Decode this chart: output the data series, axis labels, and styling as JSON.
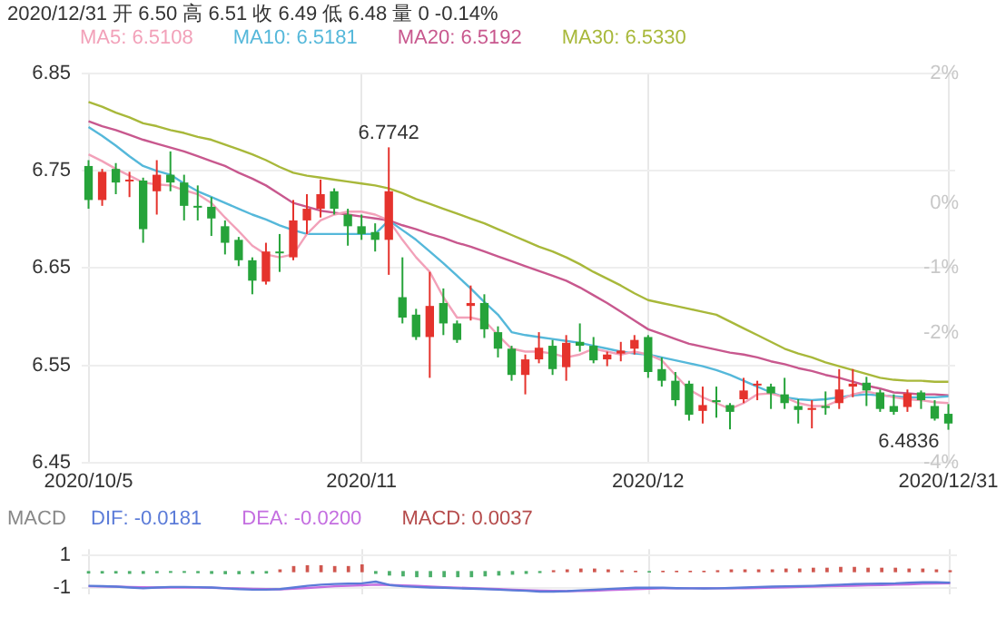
{
  "chart_data": [
    {
      "type": "candlestick",
      "title": "2020/12/31 开 6.50 高 6.51 收 6.49 低 6.48 量 0 -0.14%",
      "categories": [
        "2020/10/5",
        null,
        null,
        null,
        null,
        null,
        null,
        null,
        null,
        null,
        null,
        null,
        null,
        null,
        null,
        null,
        null,
        null,
        null,
        null,
        "2020/11",
        null,
        null,
        null,
        null,
        null,
        null,
        null,
        null,
        null,
        null,
        null,
        null,
        null,
        null,
        null,
        null,
        null,
        null,
        null,
        null,
        "2020/12",
        null,
        null,
        null,
        null,
        null,
        null,
        null,
        null,
        null,
        null,
        null,
        null,
        null,
        null,
        null,
        null,
        null,
        null,
        null,
        null,
        null,
        "2020/12/31"
      ],
      "ohlc": [
        [
          6.755,
          6.761,
          6.711,
          6.72
        ],
        [
          6.72,
          6.752,
          6.714,
          6.749
        ],
        [
          6.752,
          6.758,
          6.726,
          6.738
        ],
        [
          6.74,
          6.749,
          6.723,
          6.741
        ],
        [
          6.74,
          6.743,
          6.676,
          6.69
        ],
        [
          6.729,
          6.761,
          6.705,
          6.746
        ],
        [
          6.746,
          6.77,
          6.729,
          6.738
        ],
        [
          6.738,
          6.746,
          6.699,
          6.714
        ],
        [
          6.714,
          6.735,
          6.699,
          6.713
        ],
        [
          6.713,
          6.723,
          6.683,
          6.701
        ],
        [
          6.693,
          6.699,
          6.664,
          6.676
        ],
        [
          6.679,
          6.682,
          6.652,
          6.658
        ],
        [
          6.658,
          6.661,
          6.623,
          6.637
        ],
        [
          6.636,
          6.676,
          6.633,
          6.667
        ],
        [
          6.667,
          6.685,
          6.646,
          6.666
        ],
        [
          6.661,
          6.72,
          6.658,
          6.699
        ],
        [
          6.699,
          6.726,
          6.685,
          6.711
        ],
        [
          6.711,
          6.741,
          6.702,
          6.726
        ],
        [
          6.729,
          6.732,
          6.705,
          6.711
        ],
        [
          6.705,
          6.711,
          6.673,
          6.693
        ],
        [
          6.693,
          6.705,
          6.679,
          6.685
        ],
        [
          6.687,
          6.696,
          6.667,
          6.679
        ],
        [
          6.679,
          6.7742,
          6.643,
          6.729
        ],
        [
          6.62,
          6.661,
          6.593,
          6.599
        ],
        [
          6.602,
          6.608,
          6.576,
          6.579
        ],
        [
          6.579,
          6.646,
          6.537,
          6.611
        ],
        [
          6.614,
          6.629,
          6.581,
          6.593
        ],
        [
          6.593,
          6.596,
          6.573,
          6.576
        ],
        [
          6.611,
          6.632,
          6.596,
          6.614
        ],
        [
          6.614,
          6.623,
          6.578,
          6.587
        ],
        [
          6.584,
          6.59,
          6.558,
          6.567
        ],
        [
          6.567,
          6.57,
          6.534,
          6.54
        ],
        [
          6.54,
          6.561,
          6.52,
          6.556
        ],
        [
          6.556,
          6.584,
          6.552,
          6.568
        ],
        [
          6.57,
          6.576,
          6.54,
          6.546
        ],
        [
          6.548,
          6.581,
          6.534,
          6.573
        ],
        [
          6.574,
          6.593,
          6.564,
          6.57
        ],
        [
          6.57,
          6.579,
          6.552,
          6.555
        ],
        [
          6.556,
          6.564,
          6.549,
          6.561
        ],
        [
          6.562,
          6.574,
          6.554,
          6.565
        ],
        [
          6.567,
          6.581,
          6.561,
          6.576
        ],
        [
          6.579,
          6.581,
          6.537,
          6.543
        ],
        [
          6.546,
          6.558,
          6.528,
          6.534
        ],
        [
          6.534,
          6.543,
          6.508,
          6.514
        ],
        [
          6.531,
          6.534,
          6.493,
          6.499
        ],
        [
          6.503,
          6.528,
          6.49,
          6.509
        ],
        [
          6.514,
          6.528,
          6.496,
          6.512
        ],
        [
          6.509,
          6.511,
          6.484,
          6.502
        ],
        [
          6.515,
          6.537,
          6.511,
          6.524
        ],
        [
          6.53,
          6.534,
          6.514,
          6.531
        ],
        [
          6.528,
          6.531,
          6.505,
          6.521
        ],
        [
          6.52,
          6.537,
          6.505,
          6.511
        ],
        [
          6.508,
          6.515,
          6.49,
          6.504
        ],
        [
          6.504,
          6.514,
          6.485,
          6.506
        ],
        [
          6.508,
          6.523,
          6.499,
          6.506
        ],
        [
          6.511,
          6.546,
          6.505,
          6.525
        ],
        [
          6.528,
          6.546,
          6.517,
          6.531
        ],
        [
          6.532,
          6.538,
          6.508,
          6.524
        ],
        [
          6.522,
          6.525,
          6.502,
          6.505
        ],
        [
          6.508,
          6.52,
          6.499,
          6.502
        ],
        [
          6.507,
          6.525,
          6.502,
          6.521
        ],
        [
          6.522,
          6.524,
          6.505,
          6.514
        ],
        [
          6.508,
          6.514,
          6.493,
          6.495
        ],
        [
          6.5,
          6.51,
          6.4836,
          6.49
        ]
      ],
      "colors": [
        "#26a33a",
        "#e5332d",
        "#26a33a",
        "#e5332d",
        "#26a33a",
        "#e5332d",
        "#26a33a",
        "#26a33a",
        "#26a33a",
        "#26a33a",
        "#26a33a",
        "#26a33a",
        "#26a33a",
        "#e5332d",
        "#26a33a",
        "#e5332d",
        "#e5332d",
        "#e5332d",
        "#26a33a",
        "#26a33a",
        "#26a33a",
        "#26a33a",
        "#e5332d",
        "#26a33a",
        "#26a33a",
        "#e5332d",
        "#26a33a",
        "#26a33a",
        "#e5332d",
        "#26a33a",
        "#26a33a",
        "#26a33a",
        "#e5332d",
        "#e5332d",
        "#26a33a",
        "#e5332d",
        "#26a33a",
        "#26a33a",
        "#e5332d",
        "#e5332d",
        "#e5332d",
        "#26a33a",
        "#26a33a",
        "#26a33a",
        "#26a33a",
        "#e5332d",
        "#26a33a",
        "#26a33a",
        "#e5332d",
        "#e5332d",
        "#26a33a",
        "#26a33a",
        "#26a33a",
        "#e5332d",
        "#26a33a",
        "#e5332d",
        "#e5332d",
        "#26a33a",
        "#26a33a",
        "#26a33a",
        "#e5332d",
        "#26a33a",
        "#26a33a",
        "#26a33a"
      ],
      "series": [
        {
          "name": "MA5: 6.5108",
          "type": "line",
          "color": "#f2a1b9",
          "values": [
            6.767,
            6.76,
            6.752,
            6.745,
            6.738,
            6.736,
            6.735,
            6.73,
            6.726,
            6.717,
            6.702,
            6.688,
            6.673,
            6.664,
            6.661,
            6.664,
            6.685,
            6.699,
            6.705,
            6.708,
            6.708,
            6.705,
            6.699,
            6.679,
            6.661,
            6.646,
            6.62,
            6.599,
            6.599,
            6.596,
            6.581,
            6.567,
            6.564,
            6.564,
            6.562,
            6.558,
            6.561,
            6.567,
            6.564,
            6.561,
            6.564,
            6.561,
            6.555,
            6.54,
            6.525,
            6.517,
            6.511,
            6.505,
            6.511,
            6.52,
            6.521,
            6.517,
            6.511,
            6.508,
            6.508,
            6.514,
            6.52,
            6.523,
            6.52,
            6.517,
            6.515,
            6.514,
            6.512,
            6.511
          ]
        },
        {
          "name": "MA10: 6.5181",
          "type": "line",
          "color": "#55b8da",
          "values": [
            6.795,
            6.786,
            6.776,
            6.765,
            6.755,
            6.75,
            6.746,
            6.737,
            6.729,
            6.723,
            6.717,
            6.711,
            6.705,
            6.7,
            6.694,
            6.689,
            6.685,
            6.685,
            6.685,
            6.685,
            6.685,
            6.685,
            6.699,
            6.689,
            6.679,
            6.667,
            6.655,
            6.642,
            6.629,
            6.615,
            6.602,
            6.584,
            6.581,
            6.579,
            6.577,
            6.575,
            6.573,
            6.57,
            6.567,
            6.564,
            6.562,
            6.561,
            6.558,
            6.555,
            6.552,
            6.549,
            6.545,
            6.54,
            6.534,
            6.528,
            6.522,
            6.517,
            6.515,
            6.514,
            6.515,
            6.517,
            6.519,
            6.52,
            6.519,
            6.518,
            6.517,
            6.517,
            6.517,
            6.518
          ]
        },
        {
          "name": "MA20: 6.5192",
          "type": "line",
          "color": "#c8588e",
          "values": [
            6.801,
            6.796,
            6.792,
            6.787,
            6.782,
            6.778,
            6.774,
            6.77,
            6.765,
            6.76,
            6.755,
            6.748,
            6.742,
            6.735,
            6.726,
            6.717,
            6.713,
            6.709,
            6.707,
            6.705,
            6.703,
            6.701,
            6.699,
            6.694,
            6.69,
            6.685,
            6.681,
            6.676,
            6.672,
            6.667,
            6.662,
            6.657,
            6.652,
            6.647,
            6.642,
            6.637,
            6.63,
            6.622,
            6.614,
            6.605,
            6.596,
            6.587,
            6.582,
            6.577,
            6.572,
            6.569,
            6.566,
            6.563,
            6.561,
            6.558,
            6.554,
            6.551,
            6.547,
            6.544,
            6.54,
            6.537,
            6.533,
            6.529,
            6.526,
            6.522,
            6.521,
            6.52,
            6.52,
            6.519
          ]
        },
        {
          "name": "MA30: 6.5330",
          "type": "line",
          "color": "#a8b83a",
          "values": [
            6.821,
            6.816,
            6.81,
            6.805,
            6.799,
            6.796,
            6.792,
            6.789,
            6.785,
            6.782,
            6.777,
            6.772,
            6.767,
            6.761,
            6.754,
            6.748,
            6.745,
            6.743,
            6.741,
            6.739,
            6.737,
            6.735,
            6.732,
            6.727,
            6.721,
            6.716,
            6.711,
            6.706,
            6.701,
            6.696,
            6.69,
            6.684,
            6.678,
            6.672,
            6.667,
            6.661,
            6.654,
            6.646,
            6.639,
            6.632,
            6.624,
            6.617,
            6.614,
            6.611,
            6.608,
            6.605,
            6.602,
            6.595,
            6.588,
            6.581,
            6.574,
            6.567,
            6.562,
            6.558,
            6.553,
            6.549,
            6.545,
            6.541,
            6.537,
            6.535,
            6.534,
            6.534,
            6.533,
            6.533
          ]
        }
      ],
      "ylim": [
        6.45,
        6.85
      ],
      "yticks": [
        6.45,
        6.55,
        6.65,
        6.75,
        6.85
      ],
      "y2lim": [
        -4,
        2
      ],
      "y2ticks": [
        {
          "value": 2,
          "label": "2%"
        },
        {
          "value": 0,
          "label": "0%"
        },
        {
          "value": -1,
          "label": "-1%"
        },
        {
          "value": -2,
          "label": "-2%"
        },
        {
          "value": -4,
          "label": "-4%"
        }
      ],
      "annotations": [
        {
          "text": "6.7742",
          "y": 6.7742
        },
        {
          "text": "6.4836",
          "x": "2020/12/31",
          "y": 6.4836
        }
      ],
      "grid": true,
      "legend": "top left",
      "marker": "none"
    },
    {
      "type": "bar",
      "title": "MACD",
      "categories": [
        "2020/10/5",
        null,
        null,
        null,
        null,
        null,
        null,
        null,
        null,
        null,
        null,
        null,
        null,
        null,
        null,
        null,
        null,
        null,
        null,
        null,
        "2020/11",
        null,
        null,
        null,
        null,
        null,
        null,
        null,
        null,
        null,
        null,
        null,
        null,
        null,
        null,
        null,
        null,
        null,
        null,
        null,
        null,
        "2020/12",
        null,
        null,
        null,
        null,
        null,
        null,
        null,
        null,
        null,
        null,
        null,
        null,
        null,
        null,
        null,
        null,
        null,
        null,
        null,
        null,
        null,
        "2020/12/31"
      ],
      "series": [
        {
          "name": "DIF: -0.0181",
          "type": "line",
          "color": "#5b7bd8",
          "values": [
            -0.85,
            -0.87,
            -0.9,
            -0.95,
            -1.0,
            -0.95,
            -0.92,
            -0.92,
            -0.93,
            -0.95,
            -1.0,
            -1.05,
            -1.08,
            -1.08,
            -1.05,
            -0.95,
            -0.85,
            -0.78,
            -0.74,
            -0.72,
            -0.7,
            -0.6,
            -0.8,
            -0.88,
            -0.92,
            -0.95,
            -0.97,
            -1.0,
            -1.02,
            -1.05,
            -1.08,
            -1.12,
            -1.15,
            -1.2,
            -1.2,
            -1.17,
            -1.12,
            -1.08,
            -1.04,
            -1.0,
            -0.97,
            -0.96,
            -0.97,
            -0.99,
            -1.0,
            -1.01,
            -1.0,
            -0.98,
            -0.95,
            -0.92,
            -0.9,
            -0.88,
            -0.87,
            -0.85,
            -0.82,
            -0.78,
            -0.75,
            -0.73,
            -0.72,
            -0.7,
            -0.66,
            -0.64,
            -0.64,
            -0.66
          ]
        },
        {
          "name": "DEA: -0.0200",
          "type": "line",
          "color": "#c46ee0",
          "values": [
            -0.88,
            -0.89,
            -0.9,
            -0.92,
            -0.94,
            -0.95,
            -0.95,
            -0.95,
            -0.96,
            -0.97,
            -0.99,
            -1.01,
            -1.03,
            -1.05,
            -1.06,
            -1.03,
            -0.98,
            -0.93,
            -0.88,
            -0.85,
            -0.82,
            -0.78,
            -0.8,
            -0.83,
            -0.86,
            -0.9,
            -0.93,
            -0.96,
            -0.99,
            -1.02,
            -1.05,
            -1.08,
            -1.11,
            -1.14,
            -1.16,
            -1.17,
            -1.16,
            -1.14,
            -1.11,
            -1.08,
            -1.05,
            -1.02,
            -1.0,
            -1.0,
            -1.0,
            -1.0,
            -1.0,
            -1.0,
            -0.99,
            -0.98,
            -0.96,
            -0.94,
            -0.92,
            -0.9,
            -0.88,
            -0.86,
            -0.84,
            -0.82,
            -0.8,
            -0.78,
            -0.76,
            -0.73,
            -0.71,
            -0.7
          ]
        },
        {
          "name": "MACD: 0.0037",
          "type": "bar",
          "color": "#b54b4b",
          "values": [
            -0.08,
            -0.08,
            -0.08,
            -0.1,
            -0.1,
            -0.06,
            -0.04,
            -0.04,
            -0.06,
            -0.1,
            -0.12,
            -0.12,
            -0.1,
            -0.08,
            0.1,
            0.3,
            0.35,
            0.35,
            0.3,
            0.3,
            0.4,
            -0.1,
            -0.2,
            -0.25,
            -0.3,
            -0.3,
            -0.3,
            -0.3,
            -0.3,
            -0.25,
            -0.2,
            -0.15,
            -0.1,
            -0.05,
            0.05,
            0.1,
            0.15,
            0.15,
            0.1,
            0.05,
            0.02,
            -0.02,
            0.02,
            0.02,
            0.02,
            0.02,
            0.05,
            0.1,
            0.1,
            0.1,
            0.1,
            0.15,
            0.15,
            0.2,
            0.2,
            0.25,
            0.25,
            0.2,
            0.2,
            0.2,
            0.15,
            0.15,
            0.1,
            0.05
          ],
          "colors": [
            "#4caf6a",
            "#4caf6a",
            "#4caf6a",
            "#4caf6a",
            "#4caf6a",
            "#4caf6a",
            "#4caf6a",
            "#4caf6a",
            "#4caf6a",
            "#4caf6a",
            "#4caf6a",
            "#4caf6a",
            "#4caf6a",
            "#4caf6a",
            "#d0574f",
            "#d0574f",
            "#d0574f",
            "#d0574f",
            "#d0574f",
            "#d0574f",
            "#d0574f",
            "#4caf6a",
            "#4caf6a",
            "#4caf6a",
            "#4caf6a",
            "#4caf6a",
            "#4caf6a",
            "#4caf6a",
            "#4caf6a",
            "#4caf6a",
            "#4caf6a",
            "#4caf6a",
            "#4caf6a",
            "#4caf6a",
            "#d0574f",
            "#d0574f",
            "#d0574f",
            "#d0574f",
            "#d0574f",
            "#d0574f",
            "#d0574f",
            "#4caf6a",
            "#d0574f",
            "#d0574f",
            "#d0574f",
            "#d0574f",
            "#d0574f",
            "#d0574f",
            "#d0574f",
            "#d0574f",
            "#d0574f",
            "#d0574f",
            "#d0574f",
            "#d0574f",
            "#d0574f",
            "#d0574f",
            "#d0574f",
            "#d0574f",
            "#d0574f",
            "#d0574f",
            "#d0574f",
            "#d0574f",
            "#d0574f",
            "#d0574f"
          ]
        }
      ],
      "ylim": [
        -1.35,
        1.35
      ],
      "yticks": [
        -1,
        1
      ],
      "tick_labels": "y",
      "grid": true,
      "legend": "top left",
      "marker": "none"
    }
  ]
}
